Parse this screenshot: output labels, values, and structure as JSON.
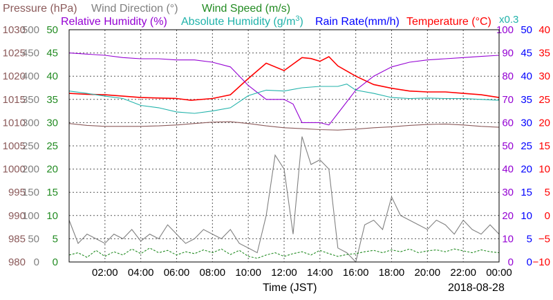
{
  "chart_data": {
    "type": "line",
    "legend": {
      "pressure": "Pressure (hPa)",
      "wind_direction": "Wind Direction (°)",
      "wind_speed": "Wind Speed (m/s)",
      "relative_humidity": "Relative Humidity (%)",
      "absolute_humidity_prefix": "Absolute Humidity (g/m",
      "absolute_humidity_exp": "3",
      "absolute_humidity_suffix": ")",
      "rain_rate": "Rain Rate(mm/h)",
      "temperature": "Temperature (°C)",
      "abs_hum_scale": "x0.3"
    },
    "xlabel": "Time (JST)",
    "date": "2018-08-28",
    "x_ticks": [
      "02:00",
      "04:00",
      "06:00",
      "08:00",
      "10:00",
      "12:00",
      "14:00",
      "16:00",
      "18:00",
      "20:00",
      "22:00",
      "00:00"
    ],
    "x_range_hours": [
      0,
      24
    ],
    "grid": true,
    "axes": {
      "pressure": {
        "color": "#8b5a5a",
        "ticks": [
          "980",
          "985",
          "990",
          "995",
          "1000",
          "1005",
          "1010",
          "1015",
          "1020",
          "1025",
          "1030"
        ],
        "range": [
          980,
          1030
        ]
      },
      "wind_direction": {
        "color": "#808080",
        "ticks": [
          "0",
          "50",
          "100",
          "150",
          "200",
          "250",
          "300",
          "350",
          "400",
          "450",
          "500"
        ],
        "range": [
          0,
          500
        ]
      },
      "wind_speed": {
        "color": "#228b22",
        "ticks": [
          "0",
          "5",
          "10",
          "15",
          "20",
          "25",
          "30",
          "35",
          "40",
          "45",
          "50"
        ],
        "range": [
          0,
          50
        ]
      },
      "relative_humidity": {
        "color": "#9400d3",
        "ticks": [
          "0",
          "10",
          "20",
          "30",
          "40",
          "50",
          "60",
          "70",
          "80",
          "90",
          "100"
        ],
        "range": [
          0,
          100
        ]
      },
      "rain_rate": {
        "color": "#0000ff",
        "ticks": [
          "0",
          "5",
          "10",
          "15",
          "20",
          "25",
          "30",
          "35",
          "40",
          "45",
          "50"
        ],
        "range": [
          0,
          50
        ]
      },
      "temperature": {
        "color": "#ff0000",
        "ticks": [
          "−10",
          "−5",
          "0",
          "5",
          "10",
          "15",
          "20",
          "25",
          "30",
          "35",
          "40"
        ],
        "range": [
          -10,
          40
        ]
      }
    },
    "series": [
      {
        "name": "Pressure (hPa)",
        "color": "#8b5a5a",
        "axis": "pressure",
        "x": [
          0,
          1,
          2,
          3,
          4,
          5,
          6,
          7,
          8,
          9,
          10,
          11,
          12,
          13,
          14,
          15,
          16,
          17,
          18,
          19,
          20,
          21,
          22,
          23,
          24
        ],
        "y": [
          1009.8,
          1009.4,
          1009.2,
          1009.2,
          1009.2,
          1009.3,
          1009.5,
          1009.8,
          1010.1,
          1010.2,
          1009.8,
          1009.3,
          1008.9,
          1008.7,
          1008.5,
          1008.4,
          1008.6,
          1008.9,
          1009.1,
          1009.4,
          1009.6,
          1009.7,
          1009.5,
          1009.2,
          1009.0
        ]
      },
      {
        "name": "Temperature (°C)",
        "color": "#ff0000",
        "axis": "temperature",
        "x": [
          0,
          1,
          2,
          3,
          4,
          5,
          6,
          6.8,
          8,
          9,
          10,
          11,
          12,
          13,
          13.5,
          14,
          14.5,
          15,
          16,
          17,
          18,
          19,
          20,
          21,
          22,
          23,
          24
        ],
        "y": [
          26.3,
          26.1,
          26.0,
          25.7,
          25.4,
          25.3,
          25.2,
          24.8,
          25.2,
          26.0,
          29.5,
          32.8,
          31.2,
          34.0,
          33.8,
          33.2,
          34.2,
          32.2,
          30.0,
          28.2,
          27.4,
          26.8,
          26.6,
          26.6,
          26.3,
          26.0,
          25.4
        ]
      },
      {
        "name": "Relative Humidity (%)",
        "color": "#9400d3",
        "axis": "relative_humidity",
        "x": [
          0,
          1,
          2,
          3,
          4,
          5,
          6,
          7,
          8,
          9,
          10,
          11,
          12,
          12.5,
          13,
          14,
          14.5,
          15,
          16,
          17,
          18,
          19,
          20,
          21,
          22,
          23,
          24
        ],
        "y": [
          90,
          89.5,
          89,
          88,
          87.5,
          87.5,
          87,
          87,
          86,
          84,
          76,
          70,
          70,
          68,
          60,
          60,
          59,
          64,
          74,
          80,
          84,
          86,
          87,
          87.5,
          88,
          88.5,
          89
        ]
      },
      {
        "name": "Absolute Humidity (g/m3)",
        "color": "#20b2aa",
        "axis": "temperature",
        "scale": "x0.3",
        "x": [
          0,
          1,
          2,
          3,
          4,
          5,
          6,
          7,
          8,
          9,
          10,
          11,
          12,
          13,
          14,
          15,
          15.5,
          16,
          17,
          18,
          19,
          20,
          21,
          22,
          23,
          24
        ],
        "y": [
          26.8,
          26.3,
          25.7,
          25.2,
          23.7,
          23.2,
          22.3,
          22.0,
          22.5,
          23.2,
          25.8,
          27.0,
          26.8,
          27.5,
          27.8,
          27.8,
          28.3,
          27.0,
          26.3,
          25.4,
          25.2,
          25.3,
          25.2,
          25.2,
          25.0,
          24.8
        ]
      },
      {
        "name": "Wind Direction (°)",
        "color": "#808080",
        "axis": "wind_direction",
        "x": [
          0,
          0.5,
          1,
          1.5,
          2,
          2.5,
          3,
          3.5,
          4,
          4.5,
          5,
          5.5,
          6,
          6.5,
          7,
          7.5,
          8,
          8.5,
          9,
          9.5,
          10,
          10.5,
          11,
          11.5,
          12,
          12.5,
          13,
          13.5,
          14,
          14.5,
          15,
          15.5,
          16,
          16.5,
          17,
          17.5,
          18,
          18.5,
          19,
          19.5,
          20,
          20.5,
          21,
          21.5,
          22,
          22.5,
          23,
          23.5,
          24
        ],
        "y": [
          90,
          40,
          60,
          50,
          40,
          60,
          50,
          70,
          45,
          60,
          50,
          80,
          60,
          40,
          50,
          70,
          60,
          50,
          70,
          40,
          30,
          20,
          100,
          230,
          200,
          60,
          270,
          210,
          220,
          200,
          30,
          20,
          0,
          80,
          90,
          70,
          140,
          100,
          90,
          80,
          70,
          90,
          80,
          60,
          90,
          70,
          60,
          80,
          60
        ]
      },
      {
        "name": "Wind Speed (m/s)",
        "color": "#228b22",
        "axis": "wind_speed",
        "x": [
          0,
          0.5,
          1,
          1.5,
          2,
          2.5,
          3,
          3.5,
          4,
          4.5,
          5,
          5.5,
          6,
          6.5,
          7,
          7.5,
          8,
          8.5,
          9,
          9.5,
          10,
          10.5,
          11,
          11.5,
          12,
          12.5,
          13,
          13.5,
          14,
          14.5,
          15,
          15.5,
          16,
          16.5,
          17,
          17.5,
          18,
          18.5,
          19,
          19.5,
          20,
          20.5,
          21,
          21.5,
          22,
          22.5,
          23,
          23.5,
          24
        ],
        "y": [
          1.5,
          2.0,
          1.0,
          2.5,
          1.2,
          2.2,
          1.5,
          2.8,
          1.8,
          3.0,
          2.0,
          2.5,
          1.5,
          2.2,
          1.8,
          2.6,
          2.0,
          2.8,
          1.6,
          2.5,
          1.2,
          0.8,
          1.5,
          2.0,
          1.2,
          1.8,
          2.2,
          1.5,
          2.5,
          1.8,
          1.2,
          1.6,
          1.8,
          2.2,
          2.5,
          2.0,
          2.6,
          2.2,
          2.8,
          2.0,
          2.4,
          2.6,
          2.2,
          2.8,
          2.4,
          2.0,
          2.6,
          2.2,
          2.0
        ]
      },
      {
        "name": "Rain Rate(mm/h)",
        "color": "#0000ff",
        "axis": "rain_rate",
        "x": [
          0,
          24
        ],
        "y": [
          0,
          0
        ]
      }
    ]
  }
}
